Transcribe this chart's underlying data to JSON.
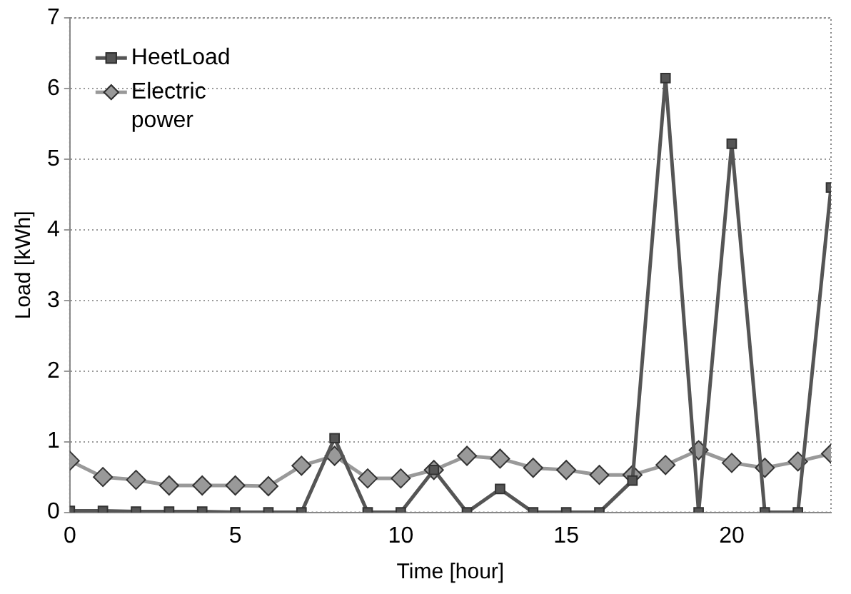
{
  "chart_data": {
    "type": "line",
    "xlabel": "Time [hour]",
    "ylabel": "Load [kWh]",
    "x": [
      0,
      1,
      2,
      3,
      4,
      5,
      6,
      7,
      8,
      9,
      10,
      11,
      12,
      13,
      14,
      15,
      16,
      17,
      18,
      19,
      20,
      21,
      22,
      23
    ],
    "xlim": [
      0,
      23
    ],
    "xticks": [
      0,
      5,
      10,
      15,
      20
    ],
    "ylim": [
      0,
      7
    ],
    "yticks": [
      0,
      1,
      2,
      3,
      4,
      5,
      6,
      7
    ],
    "grid": "y",
    "legend": "top left",
    "line_style": "solid",
    "series": [
      {
        "name": "HeetLoad",
        "color": "#555555",
        "marker": "square",
        "values": [
          0.02,
          0.02,
          0.01,
          0.01,
          0.01,
          0,
          0,
          0,
          1.05,
          0,
          0,
          0.6,
          0,
          0.33,
          0,
          0,
          0,
          0.45,
          6.15,
          0,
          5.22,
          0,
          0,
          4.6
        ]
      },
      {
        "name": "Electric power",
        "color": "#999999",
        "marker": "diamond",
        "values": [
          0.73,
          0.5,
          0.46,
          0.38,
          0.38,
          0.38,
          0.37,
          0.66,
          0.8,
          0.48,
          0.48,
          0.6,
          0.8,
          0.76,
          0.63,
          0.6,
          0.53,
          0.53,
          0.67,
          0.88,
          0.7,
          0.63,
          0.72,
          0.83
        ]
      }
    ]
  }
}
